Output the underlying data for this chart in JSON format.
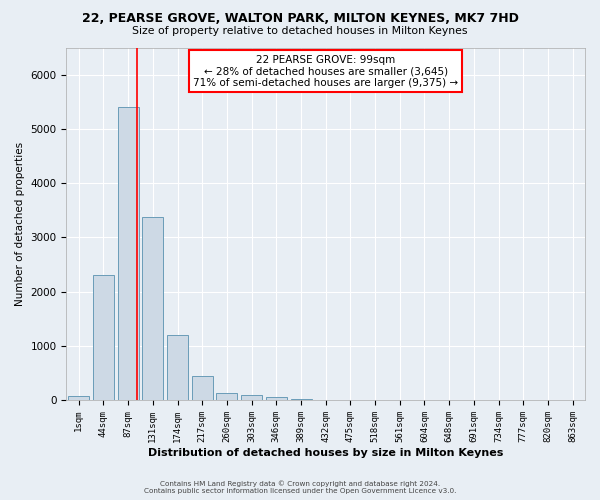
{
  "title1": "22, PEARSE GROVE, WALTON PARK, MILTON KEYNES, MK7 7HD",
  "title2": "Size of property relative to detached houses in Milton Keynes",
  "xlabel": "Distribution of detached houses by size in Milton Keynes",
  "ylabel": "Number of detached properties",
  "footnote1": "Contains HM Land Registry data © Crown copyright and database right 2024.",
  "footnote2": "Contains public sector information licensed under the Open Government Licence v3.0.",
  "annotation_line1": "22 PEARSE GROVE: 99sqm",
  "annotation_line2": "← 28% of detached houses are smaller (3,645)",
  "annotation_line3": "71% of semi-detached houses are larger (9,375) →",
  "bin_labels": [
    "1sqm",
    "44sqm",
    "87sqm",
    "131sqm",
    "174sqm",
    "217sqm",
    "260sqm",
    "303sqm",
    "346sqm",
    "389sqm",
    "432sqm",
    "475sqm",
    "518sqm",
    "561sqm",
    "604sqm",
    "648sqm",
    "691sqm",
    "734sqm",
    "777sqm",
    "820sqm",
    "863sqm"
  ],
  "bar_values": [
    75,
    2300,
    5400,
    3380,
    1200,
    450,
    130,
    90,
    50,
    20,
    5,
    3,
    0,
    0,
    0,
    0,
    0,
    0,
    0,
    0,
    0
  ],
  "bar_color": "#cdd9e5",
  "bar_edge_color": "#6a9cb8",
  "red_line_x": 2.37,
  "ylim_max": 6500,
  "background_color": "#e8eef4",
  "grid_color": "#ffffff",
  "annotation_box_color": "white",
  "annotation_border_color": "red"
}
